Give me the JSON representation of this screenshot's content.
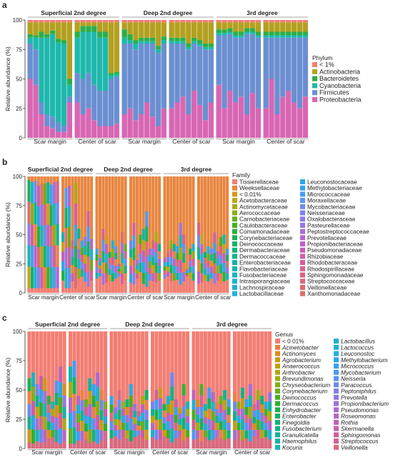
{
  "panels": [
    {
      "letter": "a",
      "ylabel": "Relative abundance (%)",
      "yticks": [
        "0",
        "25",
        "50",
        "75",
        "100"
      ],
      "groups": [
        "Superficial 2nd degree",
        "Deep 2nd degree",
        "3rd degree"
      ],
      "subgroups": [
        "Scar margin",
        "Center of scar",
        "Scar margin",
        "Center of scar",
        "Scar margin",
        "Center of scar"
      ],
      "legend_title": "Phylum",
      "legend_columns": [
        [
          "< 1%",
          "Actinobacteria",
          "Bacteroidetes",
          "Cyanobacteria",
          "Firmicutes",
          "Proteobacteria"
        ]
      ],
      "legend_italic": false
    },
    {
      "letter": "b",
      "ylabel": "Relative abundance (%)",
      "yticks": [
        "0",
        "25",
        "50",
        "75",
        "100"
      ],
      "groups": [
        "Superficial 2nd degree",
        "Deep 2nd degree",
        "3rd degree"
      ],
      "subgroups": [
        "Scar margin",
        "Center of scar",
        "Scar margin",
        "Center of scar",
        "Scar margin",
        "Center of scar"
      ],
      "legend_title": "Family",
      "legend_columns": [
        [
          "Tissierellaceae",
          "Weeksellaceae",
          "< 0.01%",
          "Acetobacteraceae",
          "Actinomycetaceae",
          "Aerococcaceae",
          "Carnobacteriaceae",
          "Caulobacteraceae",
          "Comamonadaceae",
          "Corynebacteriaceae",
          "Deinococcaceae",
          "Dermabacteraceae",
          "Dermacoccaceae",
          "Enterobacteriaceae",
          "Flavobacteriaceae",
          "Fusobacteriaceae",
          "Intrasporangiaceae",
          "Lachnospiraceae",
          "Lactobacillaceae"
        ],
        [
          "Leuconostocaceae",
          "Methylobacteriaceae",
          "Micrococcaceae",
          "Moraxellaceae",
          "Mycobacteriaceae",
          "Neisseriaceae",
          "Oxalobacteraceae",
          "Pasteurellaceae",
          "Peptostreptococcaceae",
          "Prevotellaceae",
          "Propionibacteriaceae",
          "Pseudomonadaceae",
          "Rhizobiaceae",
          "Rhodobacteraceae",
          "Rhodospirillaceae",
          "Sphingomonadaceae",
          "Streptococcaceae",
          "Veillonellaceae",
          "Xanthomonadaceae"
        ]
      ],
      "legend_italic": false
    },
    {
      "letter": "c",
      "ylabel": "Relative abundance (%)",
      "yticks": [
        "0",
        "25",
        "50",
        "75",
        "100"
      ],
      "groups": [
        "Superficial 2nd degree",
        "Deep 2nd degree",
        "3rd degree"
      ],
      "subgroups": [
        "Scar margin",
        "Center of scar",
        "Scar margin",
        "Center of scar",
        "Scar margin",
        "Center of scar"
      ],
      "legend_title": "Genus",
      "legend_columns": [
        [
          "< 0.01%",
          "Acinetobacter",
          "Actinomyces",
          "Agrobacterium",
          "Anaerococcus",
          "Arthrobacter",
          "Brevundimonas",
          "Chryseobacterium",
          "Corynebacterium",
          "Deinococcus",
          "Dermacoccus",
          "Enhydrobacter",
          "Enterobacter",
          "Finegoldia",
          "Fusobacterium",
          "Granulicatella",
          "Haemophilus",
          "Kocuria"
        ],
        [
          "Lactobacillus",
          "Lactococcus",
          "Leuconostoc",
          "Methylobacterium",
          "Micrococcus",
          "Mycobacterium",
          "Neisseria",
          "Paracoccus",
          "Peptoniphilus",
          "Prevotella",
          "Propionibacterium",
          "Pseudomonas",
          "Roseomonas",
          "Rothia",
          "Skermanella",
          "Sphingomonas",
          "Streptococcus",
          "Veillonella"
        ]
      ],
      "legend_italic": true
    }
  ],
  "colors": {
    "phylum": [
      "#f27e73",
      "#b3a020",
      "#2cae4a",
      "#1fb8ad",
      "#6b8fd1",
      "#d866b3"
    ],
    "family_col1": [
      "#f27e73",
      "#e8853f",
      "#d49a1a",
      "#c2a510",
      "#a8ab12",
      "#8cae16",
      "#6aae1a",
      "#48ae22",
      "#2aaf3a",
      "#19b055",
      "#14b06c",
      "#12b17e",
      "#12b290",
      "#14b2a0",
      "#17b3b0",
      "#1ab3bf",
      "#1db2cc",
      "#20b0d8",
      "#24ade2"
    ],
    "family_col2": [
      "#28a9ea",
      "#38a2f0",
      "#4a9bf3",
      "#5c93f4",
      "#6e8af2",
      "#7f82ee",
      "#8f7ae8",
      "#9d73e1",
      "#aa6cd8",
      "#b566cf",
      "#bf62c4",
      "#c75fb8",
      "#ce5eab",
      "#d35e9e",
      "#d66091",
      "#d86385",
      "#d96779",
      "#da6b6f",
      "#dc7067"
    ],
    "genus_col1": [
      "#f27e73",
      "#ea8240",
      "#dc8d18",
      "#cf9812",
      "#c1a110",
      "#b0a812",
      "#9cac14",
      "#85ae18",
      "#6aae1c",
      "#4dae22",
      "#32af30",
      "#1eb04a",
      "#16b060",
      "#13b174",
      "#12b286",
      "#13b298",
      "#15b3a8",
      "#18b3b8"
    ],
    "genus_col2": [
      "#1cb2c8",
      "#20b0d6",
      "#25ace2",
      "#2ca6ec",
      "#3aa0f2",
      "#4b98f4",
      "#5d90f4",
      "#6f88f0",
      "#8080ea",
      "#9078e2",
      "#9f71d9",
      "#ac6bcf",
      "#b766c3",
      "#c062b7",
      "#c85fa9",
      "#ce5e9b",
      "#d3608e",
      "#d86a7f"
    ]
  },
  "chart_data": [
    {
      "type": "bar",
      "stacked": true,
      "title": "a",
      "ylabel": "Relative abundance (%)",
      "ylim": [
        0,
        100
      ],
      "legend": "right",
      "legend_title": "Phylum",
      "series_names": [
        "Proteobacteria",
        "Firmicutes",
        "Cyanobacteria",
        "Bacteroidetes",
        "Actinobacteria",
        "< 1%"
      ],
      "sample_groups": [
        {
          "group": "Superficial 2nd degree",
          "subgroup": "Scar margin",
          "samples": [
            [
              50,
              30,
              5,
              3,
              10,
              2
            ],
            [
              45,
              30,
              10,
              2,
              11,
              2
            ],
            [
              20,
              10,
              55,
              5,
              8,
              2
            ],
            [
              10,
              10,
              65,
              3,
              10,
              2
            ],
            [
              8,
              10,
              70,
              3,
              7,
              2
            ],
            [
              5,
              8,
              68,
              3,
              14,
              2
            ],
            [
              5,
              5,
              70,
              3,
              15,
              2
            ],
            [
              30,
              5,
              10,
              5,
              48,
              2
            ]
          ]
        },
        {
          "group": "Superficial 2nd degree",
          "subgroup": "Center of scar",
          "samples": [
            [
              30,
              25,
              30,
              5,
              8,
              2
            ],
            [
              20,
              30,
              40,
              5,
              3,
              2
            ],
            [
              25,
              30,
              35,
              5,
              3,
              2
            ],
            [
              15,
              30,
              45,
              5,
              3,
              2
            ],
            [
              10,
              30,
              45,
              5,
              8,
              2
            ],
            [
              10,
              30,
              45,
              5,
              8,
              2
            ],
            [
              10,
              40,
              3,
              2,
              43,
              2
            ],
            [
              12,
              40,
              2,
              2,
              42,
              2
            ]
          ]
        },
        {
          "group": "Deep 2nd degree",
          "subgroup": "Scar margin",
          "samples": [
            [
              20,
              60,
              5,
              7,
              6,
              2
            ],
            [
              25,
              55,
              3,
              5,
              10,
              2
            ],
            [
              15,
              60,
              5,
              3,
              15,
              2
            ],
            [
              20,
              60,
              2,
              3,
              13,
              2
            ],
            [
              30,
              50,
              2,
              3,
              13,
              2
            ],
            [
              18,
              62,
              2,
              3,
              13,
              2
            ],
            [
              10,
              62,
              3,
              3,
              20,
              2
            ],
            [
              25,
              55,
              3,
              3,
              12,
              2
            ]
          ]
        },
        {
          "group": "Deep 2nd degree",
          "subgroup": "Center of scar",
          "samples": [
            [
              25,
              55,
              2,
              3,
              13,
              2
            ],
            [
              30,
              50,
              2,
              3,
              13,
              2
            ],
            [
              35,
              45,
              2,
              3,
              13,
              2
            ],
            [
              20,
              55,
              2,
              3,
              18,
              2
            ],
            [
              40,
              40,
              2,
              3,
              13,
              2
            ],
            [
              28,
              50,
              2,
              3,
              15,
              2
            ],
            [
              15,
              60,
              2,
              3,
              18,
              2
            ],
            [
              30,
              45,
              2,
              3,
              18,
              2
            ]
          ]
        },
        {
          "group": "3rd degree",
          "subgroup": "Scar margin",
          "samples": [
            [
              45,
              42,
              2,
              3,
              6,
              2
            ],
            [
              25,
              62,
              2,
              3,
              6,
              2
            ],
            [
              40,
              48,
              2,
              3,
              5,
              2
            ],
            [
              30,
              55,
              2,
              3,
              8,
              2
            ],
            [
              35,
              50,
              2,
              3,
              8,
              2
            ],
            [
              20,
              68,
              2,
              3,
              5,
              2
            ],
            [
              38,
              50,
              2,
              3,
              5,
              2
            ],
            [
              25,
              60,
              2,
              3,
              8,
              2
            ]
          ]
        },
        {
          "group": "3rd degree",
          "subgroup": "Center of scar",
          "samples": [
            [
              25,
              60,
              2,
              3,
              8,
              2
            ],
            [
              50,
              35,
              2,
              3,
              8,
              2
            ],
            [
              20,
              65,
              2,
              3,
              8,
              2
            ],
            [
              35,
              50,
              2,
              3,
              8,
              2
            ],
            [
              40,
              45,
              2,
              3,
              8,
              2
            ],
            [
              30,
              55,
              2,
              3,
              8,
              2
            ],
            [
              25,
              60,
              2,
              3,
              8,
              2
            ],
            [
              35,
              50,
              2,
              3,
              8,
              2
            ]
          ]
        }
      ]
    },
    {
      "type": "bar",
      "stacked": true,
      "title": "b",
      "ylabel": "Relative abundance (%)",
      "ylim": [
        0,
        100
      ],
      "legend": "right",
      "legend_title": "Family",
      "sample_groups": [
        {
          "group": "Superficial 2nd degree",
          "subgroup": "Scar margin",
          "top_fraction_pct": [
            3,
            5,
            4,
            8,
            6,
            6,
            5,
            7,
            5,
            4
          ],
          "structure_pct": [
            10,
            8,
            10,
            6,
            8,
            12,
            10,
            8,
            9,
            10
          ]
        },
        {
          "group": "Superficial 2nd degree",
          "subgroup": "Center of scar",
          "top_fraction_pct": [
            48,
            10,
            8,
            55,
            5,
            45,
            55,
            52,
            30,
            45
          ],
          "structure_pct": [
            30,
            5,
            5,
            28,
            5,
            35,
            40,
            28,
            15,
            30
          ]
        },
        {
          "group": "Deep 2nd degree",
          "subgroup": "Scar margin",
          "top_fraction_pct": [
            62,
            70,
            45,
            50,
            65,
            55,
            60,
            75,
            48,
            58
          ],
          "structure_pct": [
            35,
            40,
            20,
            25,
            30,
            28,
            35,
            40,
            22,
            30
          ]
        },
        {
          "group": "Deep 2nd degree",
          "subgroup": "Center of scar",
          "top_fraction_pct": [
            55,
            40,
            68,
            50,
            45,
            30,
            62,
            55,
            48,
            58
          ],
          "structure_pct": [
            25,
            20,
            35,
            28,
            22,
            15,
            30,
            28,
            25,
            30
          ]
        },
        {
          "group": "3rd degree",
          "subgroup": "Scar margin",
          "top_fraction_pct": [
            70,
            65,
            55,
            58,
            60,
            40,
            50,
            78,
            62,
            58
          ],
          "structure_pct": [
            35,
            40,
            28,
            30,
            32,
            20,
            28,
            40,
            35,
            30
          ]
        },
        {
          "group": "3rd degree",
          "subgroup": "Center of scar",
          "top_fraction_pct": [
            40,
            50,
            65,
            60,
            62,
            48,
            58,
            52,
            50,
            62
          ],
          "structure_pct": [
            22,
            25,
            30,
            28,
            35,
            22,
            30,
            25,
            28,
            32
          ]
        }
      ]
    },
    {
      "type": "bar",
      "stacked": true,
      "title": "c",
      "ylabel": "Relative abundance (%)",
      "ylim": [
        0,
        100
      ],
      "legend": "right",
      "legend_title": "Genus",
      "sample_groups": [
        {
          "group": "Superficial 2nd degree",
          "subgroup": "Scar margin",
          "top_fraction_pct": [
            40,
            35,
            45,
            38,
            40,
            55,
            60,
            42,
            30,
            45
          ],
          "structure_pct": [
            15,
            12,
            18,
            14,
            15,
            25,
            28,
            16,
            10,
            18
          ]
        },
        {
          "group": "Superficial 2nd degree",
          "subgroup": "Center of scar",
          "top_fraction_pct": [
            30,
            25,
            55,
            50,
            58,
            40,
            45,
            35,
            50,
            60
          ],
          "structure_pct": [
            12,
            10,
            20,
            18,
            22,
            15,
            18,
            12,
            20,
            25
          ]
        },
        {
          "group": "Deep 2nd degree",
          "subgroup": "Scar margin",
          "top_fraction_pct": [
            55,
            65,
            50,
            60,
            58,
            45,
            62,
            68,
            55,
            50
          ],
          "structure_pct": [
            25,
            30,
            22,
            28,
            25,
            18,
            28,
            32,
            25,
            22
          ]
        },
        {
          "group": "Deep 2nd degree",
          "subgroup": "Center of scar",
          "top_fraction_pct": [
            60,
            50,
            48,
            62,
            55,
            35,
            58,
            65,
            45,
            60
          ],
          "structure_pct": [
            28,
            22,
            20,
            30,
            25,
            15,
            25,
            30,
            20,
            28
          ]
        },
        {
          "group": "3rd degree",
          "subgroup": "Scar margin",
          "top_fraction_pct": [
            50,
            58,
            45,
            62,
            48,
            52,
            60,
            55,
            50,
            58
          ],
          "structure_pct": [
            22,
            25,
            18,
            28,
            20,
            22,
            28,
            25,
            22,
            25
          ]
        },
        {
          "group": "3rd degree",
          "subgroup": "Center of scar",
          "top_fraction_pct": [
            52,
            60,
            48,
            58,
            45,
            62,
            50,
            55,
            60,
            52
          ],
          "structure_pct": [
            22,
            28,
            20,
            25,
            18,
            30,
            22,
            25,
            28,
            22
          ]
        }
      ]
    }
  ]
}
